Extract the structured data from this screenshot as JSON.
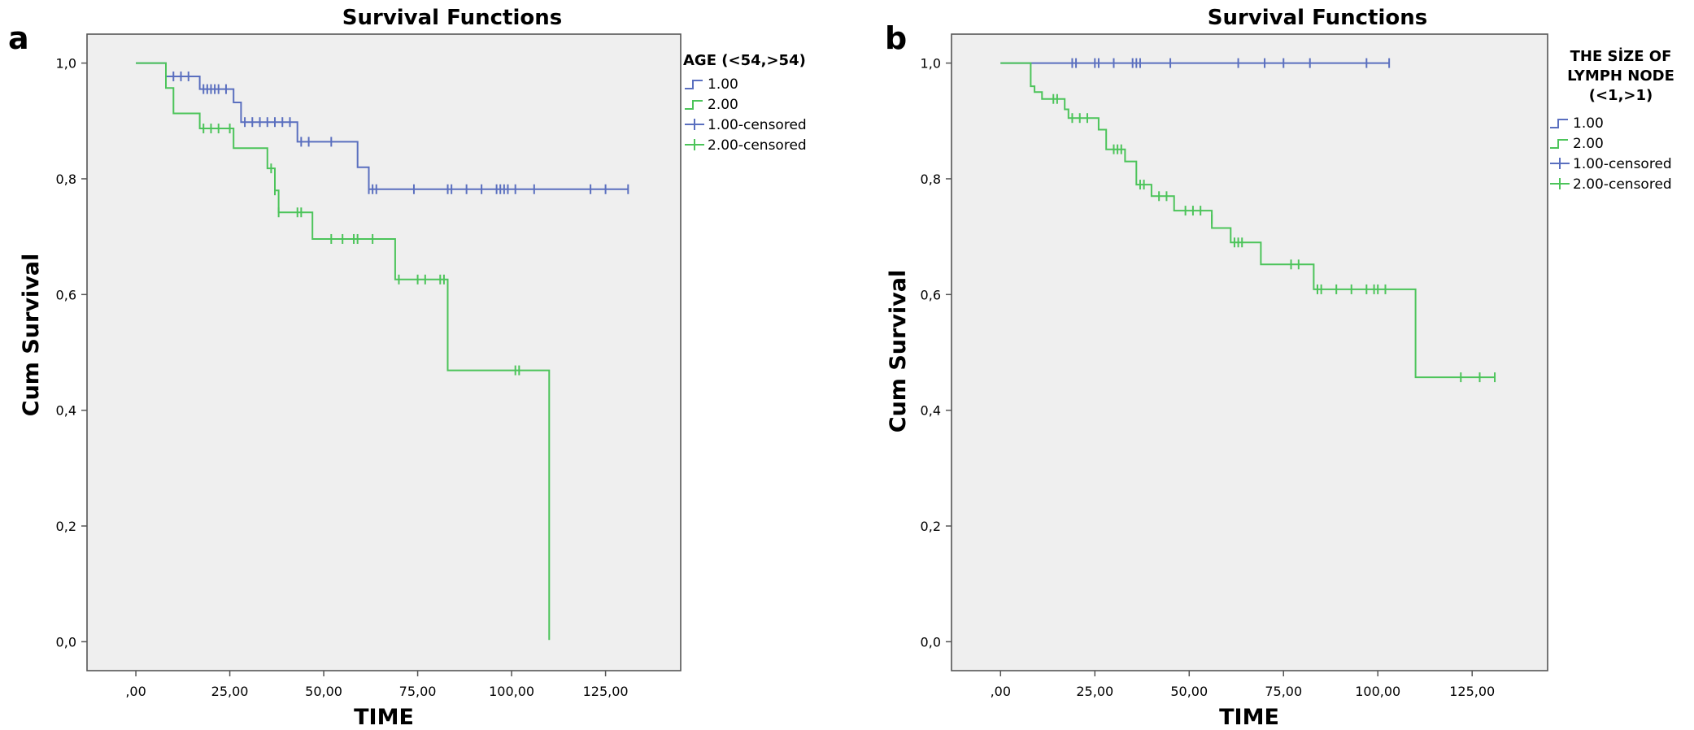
{
  "chart_data": [
    {
      "type": "line",
      "step": true,
      "panel_label": "a",
      "title": "Survival Functions",
      "xlabel": "TIME",
      "ylabel": "Cum Survival",
      "xlim": [
        -13,
        145
      ],
      "ylim": [
        -0.05,
        1.05
      ],
      "x_ticks": [
        0,
        25,
        50,
        75,
        100,
        125
      ],
      "x_tick_labels": [
        ",00",
        "25,00",
        "50,00",
        "75,00",
        "100,00",
        "125,00"
      ],
      "y_ticks": [
        0,
        0.2,
        0.4,
        0.6,
        0.8,
        1.0
      ],
      "y_tick_labels": [
        "0,0",
        "0,2",
        "0,4",
        "0,6",
        "0,8",
        "1,0"
      ],
      "grid": false,
      "legend": {
        "title": [
          "AGE (<54,>54)"
        ],
        "placement": "right",
        "entries": [
          "1.00",
          "2.00",
          "1.00-censored",
          "2.00-censored"
        ]
      },
      "series": [
        {
          "name": "1.00",
          "color": "#5a6fbf",
          "steps": [
            [
              0,
              1.0
            ],
            [
              8,
              1.0
            ],
            [
              8,
              0.977
            ],
            [
              17,
              0.977
            ],
            [
              17,
              0.955
            ],
            [
              26,
              0.955
            ],
            [
              26,
              0.932
            ],
            [
              28,
              0.932
            ],
            [
              28,
              0.898
            ],
            [
              43,
              0.898
            ],
            [
              43,
              0.864
            ],
            [
              59,
              0.864
            ],
            [
              59,
              0.82
            ],
            [
              62,
              0.82
            ],
            [
              62,
              0.782
            ],
            [
              131,
              0.782
            ]
          ],
          "censored": [
            [
              10,
              0.977
            ],
            [
              12,
              0.977
            ],
            [
              14,
              0.977
            ],
            [
              18,
              0.955
            ],
            [
              19,
              0.955
            ],
            [
              20,
              0.955
            ],
            [
              21,
              0.955
            ],
            [
              22,
              0.955
            ],
            [
              24,
              0.955
            ],
            [
              29,
              0.898
            ],
            [
              31,
              0.898
            ],
            [
              33,
              0.898
            ],
            [
              35,
              0.898
            ],
            [
              37,
              0.898
            ],
            [
              39,
              0.898
            ],
            [
              41,
              0.898
            ],
            [
              44,
              0.864
            ],
            [
              46,
              0.864
            ],
            [
              52,
              0.864
            ],
            [
              62,
              0.782
            ],
            [
              63,
              0.782
            ],
            [
              64,
              0.782
            ],
            [
              74,
              0.782
            ],
            [
              83,
              0.782
            ],
            [
              84,
              0.782
            ],
            [
              88,
              0.782
            ],
            [
              92,
              0.782
            ],
            [
              96,
              0.782
            ],
            [
              97,
              0.782
            ],
            [
              98,
              0.782
            ],
            [
              99,
              0.782
            ],
            [
              101,
              0.782
            ],
            [
              106,
              0.782
            ],
            [
              121,
              0.782
            ],
            [
              125,
              0.782
            ],
            [
              131,
              0.782
            ]
          ]
        },
        {
          "name": "2.00",
          "color": "#4cc45a",
          "steps": [
            [
              0,
              1.0
            ],
            [
              8,
              1.0
            ],
            [
              8,
              0.957
            ],
            [
              10,
              0.957
            ],
            [
              10,
              0.913
            ],
            [
              17,
              0.913
            ],
            [
              17,
              0.887
            ],
            [
              26,
              0.887
            ],
            [
              26,
              0.853
            ],
            [
              35,
              0.853
            ],
            [
              35,
              0.818
            ],
            [
              37,
              0.818
            ],
            [
              37,
              0.78
            ],
            [
              38,
              0.78
            ],
            [
              38,
              0.742
            ],
            [
              47,
              0.742
            ],
            [
              47,
              0.696
            ],
            [
              69,
              0.696
            ],
            [
              69,
              0.626
            ],
            [
              83,
              0.626
            ],
            [
              83,
              0.469
            ],
            [
              110,
              0.469
            ],
            [
              110,
              0.003
            ]
          ],
          "censored": [
            [
              18,
              0.887
            ],
            [
              20,
              0.887
            ],
            [
              22,
              0.887
            ],
            [
              25,
              0.887
            ],
            [
              36,
              0.818
            ],
            [
              37,
              0.78
            ],
            [
              38,
              0.742
            ],
            [
              43,
              0.742
            ],
            [
              44,
              0.742
            ],
            [
              52,
              0.696
            ],
            [
              55,
              0.696
            ],
            [
              58,
              0.696
            ],
            [
              59,
              0.696
            ],
            [
              63,
              0.696
            ],
            [
              70,
              0.626
            ],
            [
              75,
              0.626
            ],
            [
              77,
              0.626
            ],
            [
              81,
              0.626
            ],
            [
              82,
              0.626
            ],
            [
              101,
              0.469
            ],
            [
              102,
              0.469
            ]
          ]
        }
      ]
    },
    {
      "type": "line",
      "step": true,
      "panel_label": "b",
      "title": "Survival Functions",
      "xlabel": "TIME",
      "ylabel": "Cum Survival",
      "xlim": [
        -13,
        145
      ],
      "ylim": [
        -0.05,
        1.05
      ],
      "x_ticks": [
        0,
        25,
        50,
        75,
        100,
        125
      ],
      "x_tick_labels": [
        ",00",
        "25,00",
        "50,00",
        "75,00",
        "100,00",
        "125,00"
      ],
      "y_ticks": [
        0,
        0.2,
        0.4,
        0.6,
        0.8,
        1.0
      ],
      "y_tick_labels": [
        "0,0",
        "0,2",
        "0,4",
        "0,6",
        "0,8",
        "1,0"
      ],
      "grid": false,
      "legend": {
        "title": [
          "THE SİZE OF",
          "LYMPH NODE",
          "(<1,>1)"
        ],
        "placement": "right",
        "entries": [
          "1.00",
          "2.00",
          "1.00-censored",
          "2.00-censored"
        ]
      },
      "series": [
        {
          "name": "1.00",
          "color": "#5a6fbf",
          "steps": [
            [
              0,
              1.0
            ],
            [
              103,
              1.0
            ]
          ],
          "censored": [
            [
              19,
              1.0
            ],
            [
              20,
              1.0
            ],
            [
              25,
              1.0
            ],
            [
              26,
              1.0
            ],
            [
              30,
              1.0
            ],
            [
              35,
              1.0
            ],
            [
              36,
              1.0
            ],
            [
              37,
              1.0
            ],
            [
              45,
              1.0
            ],
            [
              63,
              1.0
            ],
            [
              70,
              1.0
            ],
            [
              75,
              1.0
            ],
            [
              82,
              1.0
            ],
            [
              97,
              1.0
            ],
            [
              103,
              1.0
            ]
          ]
        },
        {
          "name": "2.00",
          "color": "#4cc45a",
          "steps": [
            [
              0,
              1.0
            ],
            [
              8,
              1.0
            ],
            [
              8,
              0.96
            ],
            [
              9,
              0.96
            ],
            [
              9,
              0.95
            ],
            [
              11,
              0.95
            ],
            [
              11,
              0.938
            ],
            [
              17,
              0.938
            ],
            [
              17,
              0.92
            ],
            [
              18,
              0.92
            ],
            [
              18,
              0.905
            ],
            [
              26,
              0.905
            ],
            [
              26,
              0.885
            ],
            [
              28,
              0.885
            ],
            [
              28,
              0.851
            ],
            [
              33,
              0.851
            ],
            [
              33,
              0.83
            ],
            [
              36,
              0.83
            ],
            [
              36,
              0.79
            ],
            [
              40,
              0.79
            ],
            [
              40,
              0.77
            ],
            [
              46,
              0.77
            ],
            [
              46,
              0.745
            ],
            [
              56,
              0.745
            ],
            [
              56,
              0.715
            ],
            [
              61,
              0.715
            ],
            [
              61,
              0.69
            ],
            [
              69,
              0.69
            ],
            [
              69,
              0.652
            ],
            [
              83,
              0.652
            ],
            [
              83,
              0.609
            ],
            [
              110,
              0.609
            ],
            [
              110,
              0.457
            ],
            [
              131,
              0.457
            ]
          ],
          "censored": [
            [
              14,
              0.938
            ],
            [
              15,
              0.938
            ],
            [
              19,
              0.905
            ],
            [
              21,
              0.905
            ],
            [
              23,
              0.905
            ],
            [
              30,
              0.851
            ],
            [
              31,
              0.851
            ],
            [
              32,
              0.851
            ],
            [
              37,
              0.79
            ],
            [
              38,
              0.79
            ],
            [
              42,
              0.77
            ],
            [
              44,
              0.77
            ],
            [
              49,
              0.745
            ],
            [
              51,
              0.745
            ],
            [
              53,
              0.745
            ],
            [
              56,
              0.73
            ],
            [
              62,
              0.69
            ],
            [
              63,
              0.69
            ],
            [
              64,
              0.69
            ],
            [
              77,
              0.652
            ],
            [
              79,
              0.652
            ],
            [
              84,
              0.609
            ],
            [
              85,
              0.609
            ],
            [
              89,
              0.609
            ],
            [
              93,
              0.609
            ],
            [
              97,
              0.609
            ],
            [
              99,
              0.609
            ],
            [
              100,
              0.609
            ],
            [
              102,
              0.609
            ],
            [
              122,
              0.457
            ],
            [
              127,
              0.457
            ],
            [
              131,
              0.457
            ]
          ]
        }
      ]
    }
  ]
}
